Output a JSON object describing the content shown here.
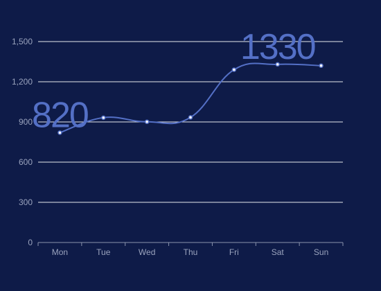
{
  "chart_data": {
    "type": "line",
    "smooth": true,
    "categories": [
      "Mon",
      "Tue",
      "Wed",
      "Thu",
      "Fri",
      "Sat",
      "Sun"
    ],
    "series": [
      {
        "values": [
          820,
          932,
          901,
          934,
          1290,
          1330,
          1320
        ]
      }
    ],
    "ylim": [
      0,
      1500
    ],
    "yticks": [
      0,
      300,
      600,
      900,
      1200,
      1500
    ],
    "ytick_labels": [
      "0",
      "300",
      "600",
      "900",
      "1,200",
      "1,500"
    ],
    "grid": true,
    "annotations": [
      {
        "text": "820",
        "category": "Mon",
        "value": 820
      },
      {
        "text": "1330",
        "category": "Sat",
        "value": 1330
      }
    ],
    "colors": {
      "background": "#0e1b48",
      "line": "#5470c6",
      "point_fill": "#ffffff",
      "annotation": "#5470c6"
    }
  }
}
